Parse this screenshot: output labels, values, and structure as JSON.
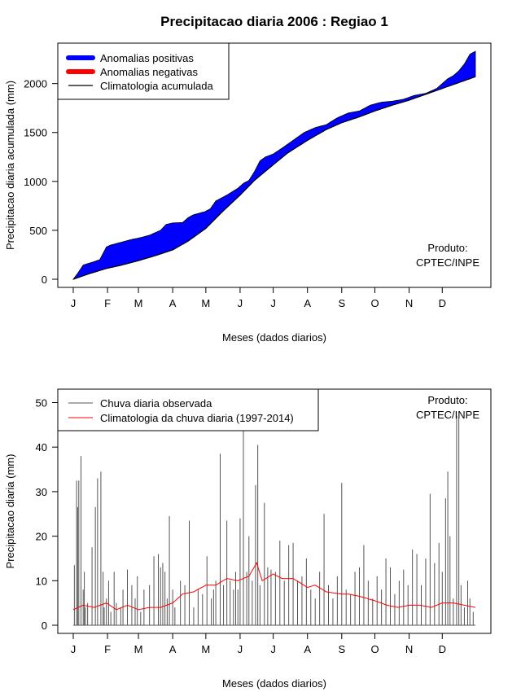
{
  "page_title": "Precipitacao diaria 2006 : Regiao 1",
  "chart_data": [
    {
      "type": "area",
      "title": "Precipitacao diaria 2006 : Regiao 1",
      "xlabel": "Meses (dados diarios)",
      "ylabel": "Precipitacao diaria acumulada (mm)",
      "ylim": [
        0,
        2350
      ],
      "xlim": [
        1,
        365
      ],
      "y_ticks": [
        0,
        500,
        1000,
        1500,
        2000
      ],
      "month_ticks": [
        1,
        32,
        60,
        91,
        121,
        152,
        182,
        213,
        244,
        274,
        305,
        335
      ],
      "month_labels": [
        "J",
        "F",
        "M",
        "A",
        "M",
        "J",
        "J",
        "A",
        "S",
        "O",
        "N",
        "D"
      ],
      "legend": {
        "position": "top-left",
        "entries": [
          "Anomalias positivas",
          "Anomalias negativas",
          "Climatologia acumulada"
        ],
        "colors": [
          "#0000ff",
          "#ff0000",
          "#000000"
        ]
      },
      "annotation": [
        "Produto:",
        "CPTEC/INPE"
      ],
      "observed_cumulative": {
        "days": [
          1,
          5,
          10,
          20,
          25,
          31,
          35,
          45,
          55,
          60,
          70,
          80,
          85,
          91,
          100,
          105,
          110,
          120,
          125,
          130,
          140,
          150,
          155,
          160,
          165,
          170,
          175,
          182,
          190,
          200,
          210,
          220,
          230,
          240,
          250,
          260,
          270,
          280,
          290,
          300,
          310,
          320,
          330,
          335,
          340,
          345,
          350,
          355,
          360,
          365
        ],
        "values": [
          0,
          60,
          145,
          180,
          200,
          330,
          350,
          380,
          410,
          420,
          450,
          500,
          560,
          575,
          580,
          630,
          660,
          690,
          720,
          800,
          860,
          930,
          980,
          1010,
          1100,
          1210,
          1250,
          1280,
          1340,
          1420,
          1500,
          1550,
          1580,
          1650,
          1700,
          1720,
          1780,
          1810,
          1820,
          1840,
          1880,
          1900,
          1950,
          2000,
          2050,
          2080,
          2130,
          2200,
          2300,
          2330
        ]
      },
      "climatology_cumulative": {
        "days": [
          1,
          15,
          31,
          45,
          60,
          75,
          91,
          105,
          121,
          135,
          152,
          165,
          182,
          195,
          213,
          230,
          244,
          260,
          274,
          290,
          305,
          320,
          335,
          350,
          365
        ],
        "values": [
          0,
          55,
          110,
          145,
          190,
          240,
          300,
          390,
          520,
          680,
          860,
          1010,
          1170,
          1290,
          1420,
          1530,
          1600,
          1660,
          1720,
          1780,
          1830,
          1890,
          1950,
          2010,
          2070
        ]
      }
    },
    {
      "type": "bar",
      "xlabel": "Meses (dados diarios)",
      "ylabel": "Precipitacao diaria (mm)",
      "ylim": [
        0,
        52
      ],
      "xlim": [
        1,
        365
      ],
      "y_ticks": [
        0,
        10,
        20,
        30,
        40,
        50
      ],
      "month_ticks": [
        1,
        32,
        60,
        91,
        121,
        152,
        182,
        213,
        244,
        274,
        305,
        335
      ],
      "month_labels": [
        "J",
        "F",
        "M",
        "A",
        "M",
        "J",
        "J",
        "A",
        "S",
        "O",
        "N",
        "D"
      ],
      "legend": {
        "position": "top-left",
        "entries": [
          "Chuva diaria observada",
          "Climatologia da chuva diaria (1997-2014)"
        ],
        "colors": [
          "#555555",
          "#ff0000"
        ]
      },
      "annotation": [
        "Produto:",
        "CPTEC/INPE"
      ],
      "series": [
        {
          "name": "Chuva diaria observada",
          "days": [
            2,
            4,
            5,
            6,
            8,
            10,
            11,
            12,
            14,
            18,
            21,
            23,
            26,
            28,
            29,
            31,
            33,
            35,
            38,
            40,
            44,
            46,
            50,
            54,
            57,
            59,
            62,
            65,
            70,
            74,
            78,
            80,
            82,
            84,
            86,
            88,
            91,
            93,
            98,
            102,
            106,
            110,
            114,
            118,
            122,
            126,
            128,
            130,
            134,
            137,
            140,
            143,
            146,
            148,
            150,
            152,
            155,
            158,
            160,
            163,
            166,
            168,
            170,
            174,
            177,
            180,
            184,
            188,
            192,
            196,
            200,
            204,
            208,
            212,
            216,
            220,
            224,
            228,
            232,
            236,
            240,
            244,
            248,
            252,
            256,
            260,
            264,
            268,
            272,
            276,
            280,
            284,
            288,
            292,
            296,
            300,
            304,
            308,
            312,
            316,
            320,
            324,
            328,
            332,
            335,
            338,
            340,
            342,
            345,
            348,
            350,
            352,
            355,
            358,
            360,
            363
          ],
          "values": [
            13.5,
            32.5,
            26.5,
            32.5,
            38,
            8,
            12,
            4,
            5,
            17.5,
            26.5,
            33,
            34.5,
            12,
            4,
            6,
            10,
            3,
            12,
            5,
            4,
            8,
            12.5,
            9,
            6,
            11,
            3,
            8,
            9,
            15.5,
            16,
            13,
            14,
            12,
            6,
            24.5,
            8,
            4,
            10,
            9,
            23.5,
            4,
            8,
            7,
            15.5,
            6,
            8,
            10,
            38.5,
            9,
            23.5,
            10,
            8,
            12,
            8,
            24,
            44,
            12,
            20,
            10,
            31.5,
            40.5,
            9,
            27.5,
            13,
            12.5,
            12,
            19,
            10,
            18,
            18.5,
            10,
            11,
            15,
            8,
            6,
            12,
            25,
            9,
            6,
            11,
            32,
            8,
            7,
            12,
            13,
            18,
            10,
            6,
            11,
            8,
            15,
            13,
            7,
            10,
            12.5,
            9,
            17,
            16,
            9,
            15,
            29.5,
            14,
            18.5,
            12,
            28.5,
            34.5,
            20,
            6,
            47,
            46.5,
            9,
            4,
            10,
            6,
            3
          ],
          "color": "#555555"
        },
        {
          "name": "Climatologia da chuva diaria (1997-2014)",
          "days": [
            1,
            10,
            20,
            31,
            40,
            50,
            60,
            70,
            80,
            91,
            100,
            110,
            121,
            130,
            140,
            150,
            160,
            167,
            172,
            182,
            190,
            200,
            213,
            220,
            230,
            244,
            250,
            260,
            274,
            285,
            295,
            305,
            315,
            325,
            335,
            345,
            355,
            365
          ],
          "values": [
            3.5,
            4.5,
            4,
            5,
            3.5,
            4.5,
            3.5,
            4,
            4,
            5,
            7,
            7.5,
            9,
            9,
            10.5,
            10,
            11,
            14,
            10,
            11.5,
            10.5,
            10.5,
            8.5,
            9,
            7.5,
            7,
            7,
            6.5,
            5.5,
            4.5,
            4,
            4.5,
            4.5,
            4,
            5,
            5,
            4.5,
            4
          ],
          "color": "#ff0000"
        }
      ]
    }
  ]
}
